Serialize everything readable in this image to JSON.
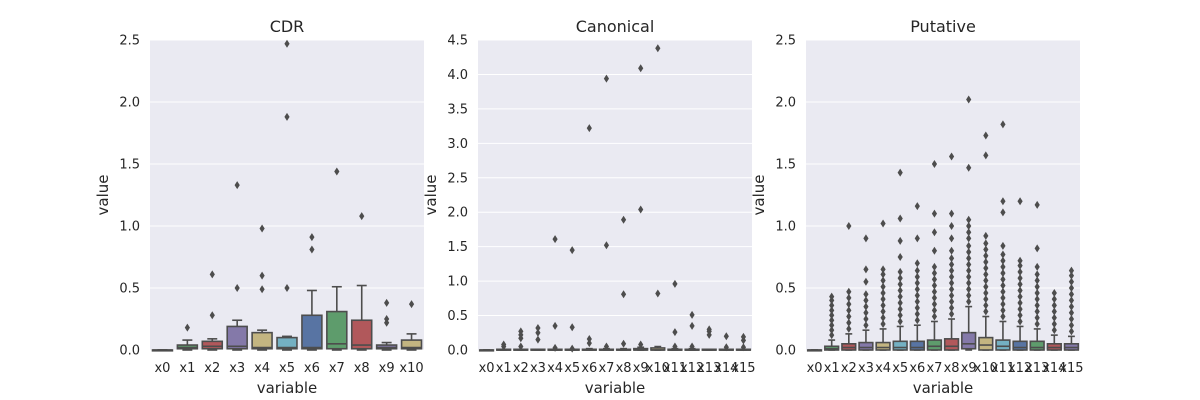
{
  "chart_data": [
    {
      "type": "box",
      "title": "CDR",
      "xlabel": "variable",
      "ylabel": "value",
      "ylim": [
        0,
        2.5
      ],
      "yticks": [
        "0.0",
        "0.5",
        "1.0",
        "1.5",
        "2.0",
        "2.5"
      ],
      "categories": [
        "x0",
        "x1",
        "x2",
        "x3",
        "x4",
        "x5",
        "x6",
        "x7",
        "x8",
        "x9",
        "x10"
      ],
      "boxes": [
        {
          "q1": 0,
          "median": 0,
          "q3": 0,
          "whisker_low": 0,
          "whisker_high": 0,
          "outliers": []
        },
        {
          "q1": 0.01,
          "median": 0.02,
          "q3": 0.04,
          "whisker_low": 0,
          "whisker_high": 0.08,
          "outliers": [
            0.18
          ]
        },
        {
          "q1": 0.01,
          "median": 0.03,
          "q3": 0.07,
          "whisker_low": 0,
          "whisker_high": 0.09,
          "outliers": [
            0.28,
            0.61
          ]
        },
        {
          "q1": 0.01,
          "median": 0.03,
          "q3": 0.19,
          "whisker_low": 0,
          "whisker_high": 0.24,
          "outliers": [
            0.5,
            1.33
          ]
        },
        {
          "q1": 0.01,
          "median": 0.02,
          "q3": 0.14,
          "whisker_low": 0,
          "whisker_high": 0.16,
          "outliers": [
            0.49,
            0.6,
            0.98
          ]
        },
        {
          "q1": 0.01,
          "median": 0.02,
          "q3": 0.1,
          "whisker_low": 0,
          "whisker_high": 0.11,
          "outliers": [
            0.5,
            1.88,
            2.47
          ]
        },
        {
          "q1": 0.01,
          "median": 0.02,
          "q3": 0.28,
          "whisker_low": 0,
          "whisker_high": 0.48,
          "outliers": [
            0.81,
            0.91
          ]
        },
        {
          "q1": 0.01,
          "median": 0.05,
          "q3": 0.31,
          "whisker_low": 0,
          "whisker_high": 0.51,
          "outliers": [
            1.44
          ]
        },
        {
          "q1": 0.01,
          "median": 0.04,
          "q3": 0.24,
          "whisker_low": 0,
          "whisker_high": 0.52,
          "outliers": [
            1.08
          ]
        },
        {
          "q1": 0.01,
          "median": 0.02,
          "q3": 0.04,
          "whisker_low": 0,
          "whisker_high": 0.06,
          "outliers": [
            0.22,
            0.25,
            0.38
          ]
        },
        {
          "q1": 0.01,
          "median": 0.02,
          "q3": 0.08,
          "whisker_low": 0,
          "whisker_high": 0.13,
          "outliers": [
            0.37
          ]
        }
      ]
    },
    {
      "type": "box",
      "title": "Canonical",
      "xlabel": "variable",
      "ylabel": "value",
      "ylim": [
        0,
        4.5
      ],
      "yticks": [
        "0.0",
        "0.5",
        "1.0",
        "1.5",
        "2.0",
        "2.5",
        "3.0",
        "3.5",
        "4.0",
        "4.5"
      ],
      "categories": [
        "x0",
        "x1",
        "x2",
        "x3",
        "x4",
        "x5",
        "x6",
        "x7",
        "x8",
        "x9",
        "x10",
        "x11",
        "x12",
        "x13",
        "x14",
        "x15"
      ],
      "boxes": [
        {
          "q1": 0,
          "median": 0,
          "q3": 0,
          "whisker_low": 0,
          "whisker_high": 0,
          "outliers": []
        },
        {
          "q1": 0,
          "median": 0,
          "q3": 0.01,
          "whisker_low": 0,
          "whisker_high": 0.01,
          "outliers": [
            0.05,
            0.08
          ]
        },
        {
          "q1": 0,
          "median": 0,
          "q3": 0.01,
          "whisker_low": 0,
          "whisker_high": 0.01,
          "outliers": [
            0.05,
            0.17,
            0.22,
            0.27
          ]
        },
        {
          "q1": 0,
          "median": 0,
          "q3": 0.01,
          "whisker_low": 0,
          "whisker_high": 0.01,
          "outliers": [
            0.15,
            0.25,
            0.32
          ]
        },
        {
          "q1": 0,
          "median": 0,
          "q3": 0.01,
          "whisker_low": 0,
          "whisker_high": 0.01,
          "outliers": [
            0.03,
            0.35,
            1.61
          ]
        },
        {
          "q1": 0,
          "median": 0,
          "q3": 0.01,
          "whisker_low": 0,
          "whisker_high": 0.01,
          "outliers": [
            0.02,
            0.33,
            1.45
          ]
        },
        {
          "q1": 0,
          "median": 0,
          "q3": 0.01,
          "whisker_low": 0,
          "whisker_high": 0.02,
          "outliers": [
            0.1,
            0.16,
            3.22
          ]
        },
        {
          "q1": 0,
          "median": 0,
          "q3": 0.01,
          "whisker_low": 0,
          "whisker_high": 0.02,
          "outliers": [
            0.05,
            1.52,
            3.94
          ]
        },
        {
          "q1": 0,
          "median": 0,
          "q3": 0.01,
          "whisker_low": 0,
          "whisker_high": 0.02,
          "outliers": [
            0.09,
            0.81,
            1.89
          ]
        },
        {
          "q1": 0,
          "median": 0,
          "q3": 0.02,
          "whisker_low": 0,
          "whisker_high": 0.04,
          "outliers": [
            0.08,
            2.04,
            4.09
          ]
        },
        {
          "q1": 0,
          "median": 0,
          "q3": 0.03,
          "whisker_low": 0,
          "whisker_high": 0.05,
          "outliers": [
            0.82,
            4.38
          ]
        },
        {
          "q1": 0,
          "median": 0,
          "q3": 0.01,
          "whisker_low": 0,
          "whisker_high": 0.02,
          "outliers": [
            0.05,
            0.26,
            0.96
          ]
        },
        {
          "q1": 0,
          "median": 0,
          "q3": 0.01,
          "whisker_low": 0,
          "whisker_high": 0.02,
          "outliers": [
            0.05,
            0.35,
            0.51
          ]
        },
        {
          "q1": 0,
          "median": 0,
          "q3": 0.01,
          "whisker_low": 0,
          "whisker_high": 0.01,
          "outliers": [
            0.22,
            0.27,
            0.3
          ]
        },
        {
          "q1": 0,
          "median": 0,
          "q3": 0.01,
          "whisker_low": 0,
          "whisker_high": 0.01,
          "outliers": [
            0.04,
            0.2
          ]
        },
        {
          "q1": 0,
          "median": 0,
          "q3": 0.01,
          "whisker_low": 0,
          "whisker_high": 0.01,
          "outliers": [
            0.04,
            0.14,
            0.19
          ]
        }
      ]
    },
    {
      "type": "box",
      "title": "Putative",
      "xlabel": "variable",
      "ylabel": "value",
      "ylim": [
        0,
        2.5
      ],
      "yticks": [
        "0.0",
        "0.5",
        "1.0",
        "1.5",
        "2.0",
        "2.5"
      ],
      "categories": [
        "x0",
        "x1",
        "x2",
        "x3",
        "x4",
        "x5",
        "x6",
        "x7",
        "x8",
        "x9",
        "x10",
        "x11",
        "x12",
        "x13",
        "x14",
        "x15"
      ],
      "boxes": [
        {
          "q1": 0,
          "median": 0,
          "q3": 0,
          "whisker_low": 0,
          "whisker_high": 0,
          "outliers": []
        },
        {
          "q1": 0,
          "median": 0.01,
          "q3": 0.03,
          "whisker_low": 0,
          "whisker_high": 0.08,
          "outliers": [
            0.12,
            0.16,
            0.2,
            0.24,
            0.28,
            0.32,
            0.36,
            0.4,
            0.43
          ]
        },
        {
          "q1": 0,
          "median": 0.02,
          "q3": 0.05,
          "whisker_low": 0,
          "whisker_high": 0.13,
          "outliers": [
            0.17,
            0.22,
            0.27,
            0.32,
            0.37,
            0.42,
            0.47,
            1.0
          ]
        },
        {
          "q1": 0,
          "median": 0.02,
          "q3": 0.06,
          "whisker_low": 0,
          "whisker_high": 0.16,
          "outliers": [
            0.2,
            0.25,
            0.3,
            0.35,
            0.4,
            0.45,
            0.55,
            0.65,
            0.9
          ]
        },
        {
          "q1": 0,
          "median": 0.02,
          "q3": 0.06,
          "whisker_low": 0,
          "whisker_high": 0.17,
          "outliers": [
            0.21,
            0.26,
            0.31,
            0.36,
            0.41,
            0.46,
            0.51,
            0.56,
            0.61,
            0.65,
            1.02
          ]
        },
        {
          "q1": 0,
          "median": 0.02,
          "q3": 0.07,
          "whisker_low": 0,
          "whisker_high": 0.19,
          "outliers": [
            0.23,
            0.28,
            0.33,
            0.38,
            0.43,
            0.48,
            0.53,
            0.58,
            0.63,
            0.75,
            0.88,
            1.06,
            1.43
          ]
        },
        {
          "q1": 0,
          "median": 0.02,
          "q3": 0.07,
          "whisker_low": 0,
          "whisker_high": 0.2,
          "outliers": [
            0.24,
            0.29,
            0.34,
            0.39,
            0.44,
            0.49,
            0.54,
            0.59,
            0.64,
            0.7,
            0.9,
            1.16
          ]
        },
        {
          "q1": 0,
          "median": 0.03,
          "q3": 0.08,
          "whisker_low": 0,
          "whisker_high": 0.23,
          "outliers": [
            0.27,
            0.32,
            0.37,
            0.42,
            0.47,
            0.52,
            0.57,
            0.62,
            0.67,
            0.8,
            0.95,
            1.1,
            1.5
          ]
        },
        {
          "q1": 0,
          "median": 0.03,
          "q3": 0.09,
          "whisker_low": 0,
          "whisker_high": 0.25,
          "outliers": [
            0.29,
            0.34,
            0.39,
            0.44,
            0.49,
            0.54,
            0.59,
            0.64,
            0.69,
            0.74,
            0.8,
            0.9,
            1.0,
            1.1,
            1.56
          ]
        },
        {
          "q1": 0.01,
          "median": 0.05,
          "q3": 0.14,
          "whisker_low": 0,
          "whisker_high": 0.35,
          "outliers": [
            0.39,
            0.44,
            0.49,
            0.54,
            0.59,
            0.64,
            0.69,
            0.74,
            0.79,
            0.84,
            0.9,
            0.95,
            1.0,
            1.05,
            1.47,
            2.02
          ]
        },
        {
          "q1": 0,
          "median": 0.04,
          "q3": 0.1,
          "whisker_low": 0,
          "whisker_high": 0.27,
          "outliers": [
            0.31,
            0.36,
            0.41,
            0.46,
            0.51,
            0.56,
            0.61,
            0.66,
            0.71,
            0.76,
            0.81,
            0.86,
            0.92,
            1.57,
            1.73
          ]
        },
        {
          "q1": 0,
          "median": 0.03,
          "q3": 0.08,
          "whisker_low": 0,
          "whisker_high": 0.23,
          "outliers": [
            0.27,
            0.32,
            0.37,
            0.42,
            0.47,
            0.52,
            0.57,
            0.62,
            0.67,
            0.72,
            0.77,
            0.84,
            1.11,
            1.2,
            1.82
          ]
        },
        {
          "q1": 0,
          "median": 0.02,
          "q3": 0.07,
          "whisker_low": 0,
          "whisker_high": 0.19,
          "outliers": [
            0.23,
            0.28,
            0.33,
            0.38,
            0.43,
            0.48,
            0.53,
            0.58,
            0.63,
            0.68,
            0.72,
            1.2
          ]
        },
        {
          "q1": 0,
          "median": 0.02,
          "q3": 0.07,
          "whisker_low": 0,
          "whisker_high": 0.17,
          "outliers": [
            0.21,
            0.26,
            0.31,
            0.36,
            0.41,
            0.46,
            0.51,
            0.56,
            0.61,
            0.67,
            0.82,
            1.17
          ]
        },
        {
          "q1": 0,
          "median": 0.02,
          "q3": 0.05,
          "whisker_low": 0,
          "whisker_high": 0.12,
          "outliers": [
            0.16,
            0.21,
            0.26,
            0.31,
            0.36,
            0.41,
            0.46
          ]
        },
        {
          "q1": 0,
          "median": 0.02,
          "q3": 0.05,
          "whisker_low": 0,
          "whisker_high": 0.11,
          "outliers": [
            0.15,
            0.2,
            0.25,
            0.3,
            0.35,
            0.4,
            0.45,
            0.5,
            0.55,
            0.6,
            0.64
          ]
        }
      ]
    }
  ],
  "colors": {
    "axes_background": "#EAEAF2",
    "grid": "#FFFFFF",
    "line": "#4D4D4D",
    "text": "#262626",
    "palette": [
      "#4C72B0",
      "#55A868",
      "#C44E52",
      "#8172B2",
      "#CCB974",
      "#64B5CD",
      "#4C72B0",
      "#55A868",
      "#C44E52",
      "#8172B2",
      "#CCB974",
      "#64B5CD",
      "#4C72B0",
      "#55A868",
      "#C44E52",
      "#8172B2"
    ]
  }
}
